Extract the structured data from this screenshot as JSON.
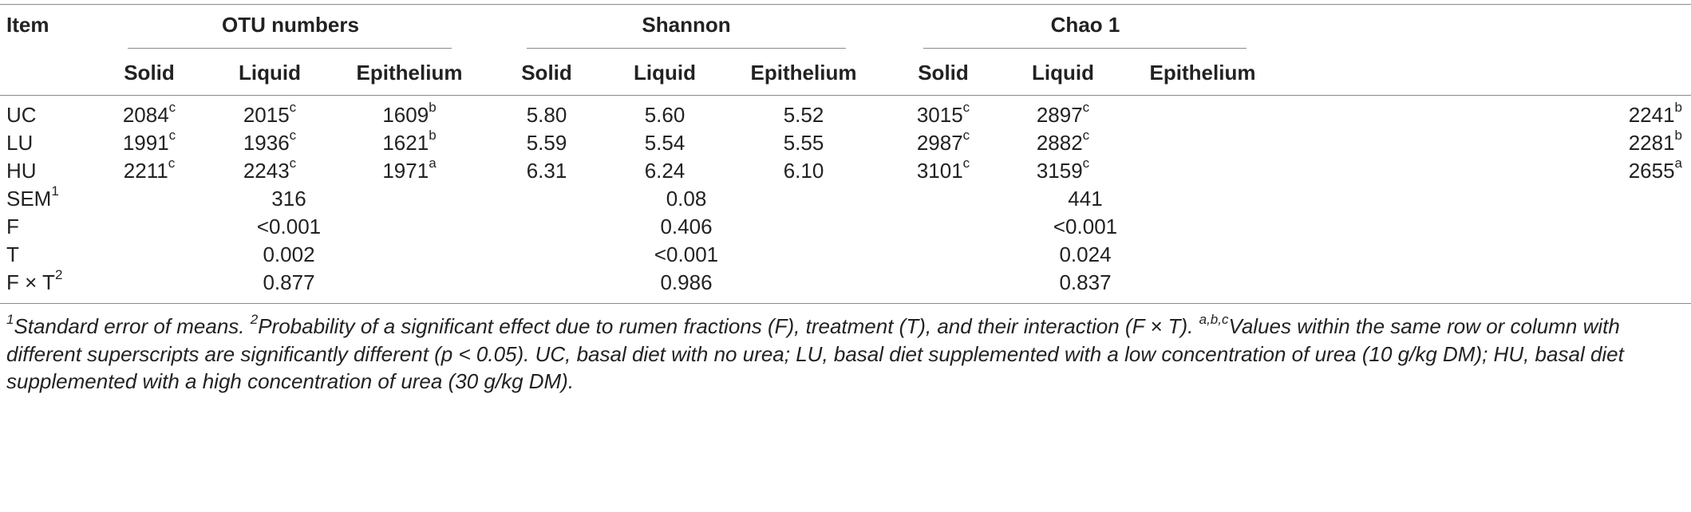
{
  "header": {
    "item_label": "Item",
    "groups": [
      "OTU numbers",
      "Shannon",
      "Chao 1"
    ],
    "subcols": [
      "Solid",
      "Liquid",
      "Epithelium"
    ]
  },
  "rows": [
    {
      "label": "UC",
      "otu": [
        [
          "2084",
          "c"
        ],
        [
          "2015",
          "c"
        ],
        [
          "1609",
          "b"
        ]
      ],
      "shannon": [
        "5.80",
        "5.60",
        "5.52"
      ],
      "chao": [
        [
          "3015",
          "c"
        ],
        [
          "2897",
          "c"
        ],
        [
          "2241",
          "b"
        ]
      ]
    },
    {
      "label": "LU",
      "otu": [
        [
          "1991",
          "c"
        ],
        [
          "1936",
          "c"
        ],
        [
          "1621",
          "b"
        ]
      ],
      "shannon": [
        "5.59",
        "5.54",
        "5.55"
      ],
      "chao": [
        [
          "2987",
          "c"
        ],
        [
          "2882",
          "c"
        ],
        [
          "2281",
          "b"
        ]
      ]
    },
    {
      "label": "HU",
      "otu": [
        [
          "2211",
          "c"
        ],
        [
          "2243",
          "c"
        ],
        [
          "1971",
          "a"
        ]
      ],
      "shannon": [
        "6.31",
        "6.24",
        "6.10"
      ],
      "chao": [
        [
          "3101",
          "c"
        ],
        [
          "3159",
          "c"
        ],
        [
          "2655",
          "a"
        ]
      ]
    }
  ],
  "stats": [
    {
      "label": "SEM",
      "sup": "1",
      "values": [
        "316",
        "0.08",
        "441"
      ]
    },
    {
      "label": "F",
      "sup": "",
      "values": [
        "<0.001",
        "0.406",
        "<0.001"
      ]
    },
    {
      "label": "T",
      "sup": "",
      "values": [
        "0.002",
        "<0.001",
        "0.024"
      ]
    },
    {
      "label": "F × T",
      "sup": "2",
      "values": [
        "0.877",
        "0.986",
        "0.837"
      ]
    }
  ],
  "footnote": {
    "n1_sup": "1",
    "n1_text": "Standard error of means. ",
    "n2_sup": "2",
    "n2_text": "Probability of a significant effect due to rumen fractions (F), treatment (T), and their interaction (F × T). ",
    "abc_sup": "a,b,c",
    "abc_text": "Values within the same row or column with different superscripts are significantly different (p < 0.05). UC, basal diet with no urea; LU, basal diet supplemented with a low concentration of urea (10 g/kg DM); HU, basal diet supplemented with a high concentration of urea (30 g/kg DM)."
  }
}
